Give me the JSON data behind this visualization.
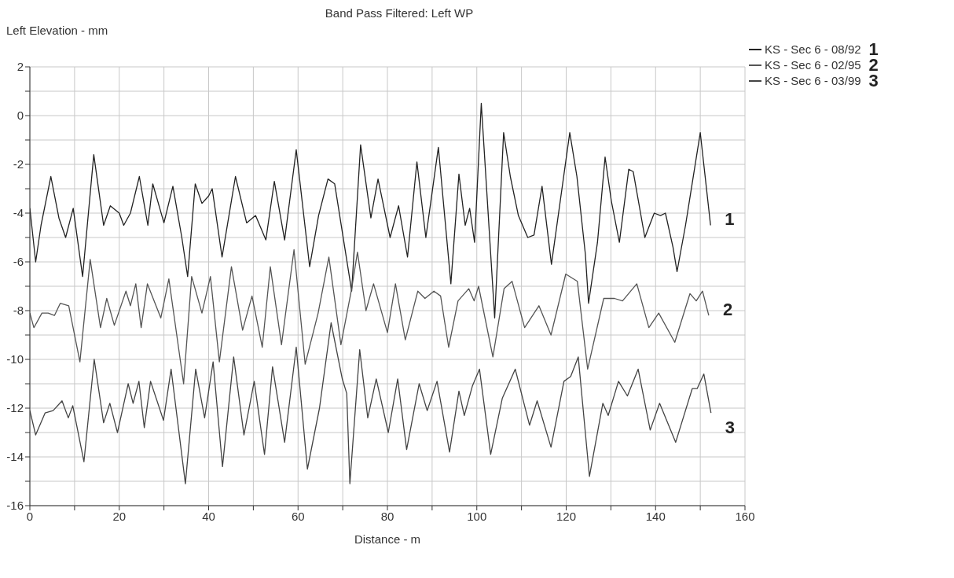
{
  "chart_data": {
    "type": "line",
    "title": "Band Pass Filtered: Left WP",
    "xlabel": "Distance - m",
    "ylabel": "Left Elevation - mm",
    "xlim": [
      0,
      160
    ],
    "xticks": [
      0,
      {
        "value": 10,
        "label": null
      },
      20,
      {
        "value": 30,
        "label": null
      },
      40,
      {
        "value": 50,
        "label": null
      },
      60,
      {
        "value": 70,
        "label": null
      },
      80,
      {
        "value": 90,
        "label": null
      },
      100,
      {
        "value": 110,
        "label": null
      },
      120,
      {
        "value": 130,
        "label": null
      },
      140,
      {
        "value": 150,
        "label": null
      },
      160
    ],
    "ylim": [
      -16,
      2
    ],
    "yticks": [
      -16,
      {
        "value": -15,
        "label": null
      },
      -14,
      {
        "value": -13,
        "label": null
      },
      -12,
      {
        "value": -11,
        "label": null
      },
      -10,
      {
        "value": -9,
        "label": null
      },
      -8,
      {
        "value": -7,
        "label": null
      },
      -6,
      {
        "value": -5,
        "label": null
      },
      -4,
      {
        "value": -3,
        "label": null
      },
      -2,
      {
        "value": -1,
        "label": null
      },
      0,
      {
        "value": 1,
        "label": null
      },
      2
    ],
    "grid": true,
    "legend": "top right",
    "line_style": "solid",
    "marker": "none",
    "annotations": [
      "1",
      "2",
      "3"
    ],
    "series": [
      {
        "name": "KS - Sec 6 - 08/92",
        "color": "#222222",
        "x": [
          0,
          1.3,
          2.5,
          4.7,
          6.5,
          8,
          9.7,
          11.8,
          14.3,
          16.5,
          18,
          20,
          21,
          22.5,
          24.5,
          26.4,
          27.5,
          30,
          32,
          34,
          35.3,
          37,
          38.5,
          40,
          40.8,
          43,
          46,
          48.5,
          50.5,
          52.8,
          54.7,
          57,
          59.6,
          62.6,
          64.6,
          66.7,
          68.2,
          72,
          74,
          76.3,
          77.9,
          80.6,
          82.5,
          84.5,
          86.6,
          88.6,
          91.4,
          94.2,
          96,
          97.4,
          98.4,
          99.5,
          101,
          104,
          106,
          107.5,
          109.3,
          111.4,
          112.8,
          114.6,
          116.7,
          120.8,
          122.4,
          124.3,
          125,
          127,
          128.7,
          130.1,
          131.9,
          134,
          135,
          137.6,
          139.7,
          141.1,
          142.2,
          143.9,
          144.8,
          146.7,
          150,
          152.3
        ],
        "values": [
          -3.8,
          -6.0,
          -4.5,
          -2.5,
          -4.2,
          -5.0,
          -3.8,
          -6.6,
          -1.6,
          -4.5,
          -3.7,
          -4.0,
          -4.5,
          -4.0,
          -2.5,
          -4.5,
          -2.8,
          -4.4,
          -2.9,
          -5.0,
          -6.6,
          -2.8,
          -3.6,
          -3.3,
          -3.0,
          -5.8,
          -2.5,
          -4.4,
          -4.1,
          -5.1,
          -2.7,
          -5.1,
          -1.4,
          -6.2,
          -4.1,
          -2.6,
          -2.8,
          -7.2,
          -1.2,
          -4.2,
          -2.6,
          -5.0,
          -3.7,
          -5.8,
          -1.9,
          -5.0,
          -1.3,
          -6.9,
          -2.4,
          -4.5,
          -3.8,
          -5.2,
          0.5,
          -8.3,
          -0.7,
          -2.5,
          -4.1,
          -5.0,
          -4.9,
          -2.9,
          -6.1,
          -0.7,
          -2.5,
          -5.7,
          -7.7,
          -5.2,
          -1.7,
          -3.5,
          -5.2,
          -2.2,
          -2.3,
          -5.0,
          -4.0,
          -4.1,
          -4.0,
          -5.4,
          -6.4,
          -4.5,
          -0.7,
          -4.5
        ]
      },
      {
        "name": "KS - Sec 6 - 02/95",
        "color": "#555555",
        "x": [
          0,
          0.9,
          2.7,
          4.1,
          5.5,
          6.8,
          8.7,
          11.2,
          13.5,
          15.8,
          17.2,
          18.9,
          21.5,
          22.5,
          23.7,
          24.9,
          26.3,
          29.3,
          31.1,
          34.4,
          36.2,
          38.5,
          40.4,
          42.4,
          45.1,
          47.6,
          49.7,
          52,
          53.8,
          56.3,
          59.1,
          61.6,
          64.5,
          66.9,
          69.6,
          72,
          73.3,
          75.2,
          76.9,
          80,
          81.8,
          84,
          86.8,
          88.4,
          90.4,
          91.9,
          93.7,
          95.8,
          98.2,
          99.4,
          100.4,
          103.6,
          106.1,
          107.9,
          110.7,
          113.9,
          116.6,
          119.9,
          122.5,
          124.8,
          128.4,
          130.8,
          132.6,
          135.8,
          138.5,
          140.7,
          144.3,
          147.7,
          149.1,
          150.5,
          151.9
        ],
        "values": [
          -8.1,
          -8.7,
          -8.1,
          -8.1,
          -8.2,
          -7.7,
          -7.8,
          -10.1,
          -5.9,
          -8.7,
          -7.5,
          -8.6,
          -7.2,
          -7.8,
          -6.9,
          -8.7,
          -6.9,
          -8.3,
          -6.7,
          -11.0,
          -6.6,
          -8.1,
          -6.6,
          -10.1,
          -6.2,
          -8.8,
          -7.4,
          -9.5,
          -6.2,
          -9.4,
          -5.5,
          -10.2,
          -8.1,
          -5.8,
          -9.4,
          -7.1,
          -5.6,
          -8.0,
          -6.9,
          -8.9,
          -6.9,
          -9.2,
          -7.2,
          -7.5,
          -7.2,
          -7.4,
          -9.5,
          -7.6,
          -7.1,
          -7.6,
          -7.0,
          -9.9,
          -7.1,
          -6.8,
          -8.7,
          -7.8,
          -9.0,
          -6.5,
          -6.8,
          -10.4,
          -7.5,
          -7.5,
          -7.6,
          -6.9,
          -8.7,
          -8.1,
          -9.3,
          -7.3,
          -7.6,
          -7.2,
          -8.2
        ]
      },
      {
        "name": "KS - Sec 6 - 03/99",
        "color": "#444444",
        "x": [
          0,
          1.3,
          3.4,
          5.2,
          7.2,
          8.6,
          9.6,
          12.1,
          14.4,
          16.5,
          17.9,
          19.6,
          22,
          23.1,
          24.4,
          25.6,
          27,
          29.9,
          31.6,
          34.8,
          37.1,
          39.1,
          41,
          43.1,
          45.6,
          47.9,
          50.2,
          52.5,
          54.3,
          57,
          59.6,
          62.1,
          64.8,
          67.4,
          69.9,
          70.9,
          71.6,
          73.8,
          75.6,
          77.5,
          80.2,
          82.3,
          84.3,
          87.1,
          88.9,
          91.1,
          93.9,
          96,
          97.2,
          99,
          100.6,
          103.1,
          105.7,
          108.6,
          111.8,
          113.5,
          116.6,
          119.5,
          121,
          122.7,
          125.2,
          128.2,
          129.4,
          131.7,
          133.7,
          136.1,
          138.8,
          140.9,
          144.5,
          148.2,
          149.3,
          150.8,
          152.4
        ],
        "values": [
          -12.1,
          -13.1,
          -12.2,
          -12.1,
          -11.7,
          -12.4,
          -11.9,
          -14.2,
          -10.0,
          -12.6,
          -11.8,
          -13.0,
          -11.0,
          -11.8,
          -10.9,
          -12.8,
          -10.9,
          -12.5,
          -10.4,
          -15.1,
          -10.4,
          -12.4,
          -10.1,
          -14.4,
          -9.9,
          -13.1,
          -10.9,
          -13.9,
          -10.3,
          -13.4,
          -9.5,
          -14.5,
          -12.0,
          -8.5,
          -10.8,
          -11.4,
          -15.1,
          -9.6,
          -12.4,
          -10.8,
          -13.0,
          -10.8,
          -13.7,
          -11.0,
          -12.1,
          -10.9,
          -13.8,
          -11.3,
          -12.3,
          -11.1,
          -10.4,
          -13.9,
          -11.6,
          -10.4,
          -12.7,
          -11.7,
          -13.6,
          -10.9,
          -10.7,
          -9.9,
          -14.8,
          -11.8,
          -12.3,
          -10.9,
          -11.5,
          -10.4,
          -12.9,
          -11.8,
          -13.4,
          -11.2,
          -11.2,
          -10.6,
          -12.2
        ]
      }
    ]
  }
}
